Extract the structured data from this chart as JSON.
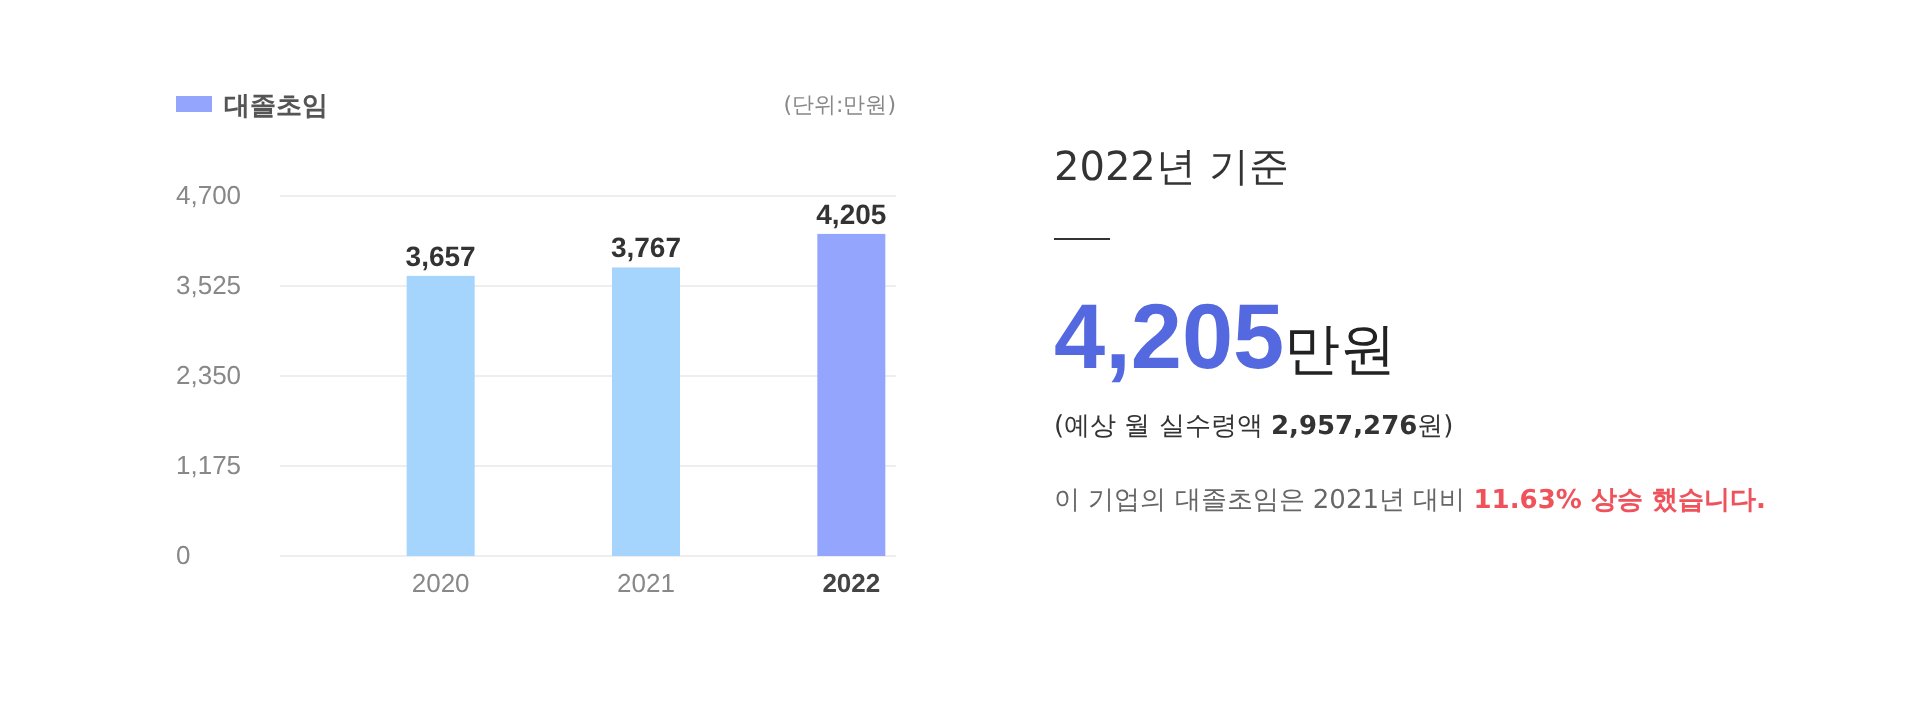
{
  "chart_data": [
    {
      "type": "bar",
      "categories": [
        "2020",
        "2021",
        "2022"
      ],
      "series": [
        {
          "name": "대졸초임",
          "color": "#94a5fd",
          "colors": [
            "#a5d4fd",
            "#a5d4fd",
            "#94a5fd"
          ],
          "values": [
            3657,
            3767,
            4205
          ],
          "value_labels": [
            "3,657",
            "3,767",
            "4,205"
          ]
        }
      ],
      "ylim": [
        0,
        4700
      ],
      "yticks": [
        0,
        {
          "value": 1175,
          "label": "1,175"
        },
        {
          "value": 2350,
          "label": "2,350"
        },
        {
          "value": 3525,
          "label": "3,525"
        },
        {
          "value": 4700,
          "label": "4,700"
        }
      ],
      "grid": "y",
      "legend": "top left",
      "annotations": [
        "(단위:만원)"
      ]
    },
    {
      "type": "other",
      "title": "2022년 기준",
      "annotations": [
        "**4,205**만원",
        "(예상 월 실수령액 **2,957,276**원)",
        "이 기업의 대졸초임은 2021년 대비 **11.63% 상승 했습니다.**"
      ]
    }
  ]
}
